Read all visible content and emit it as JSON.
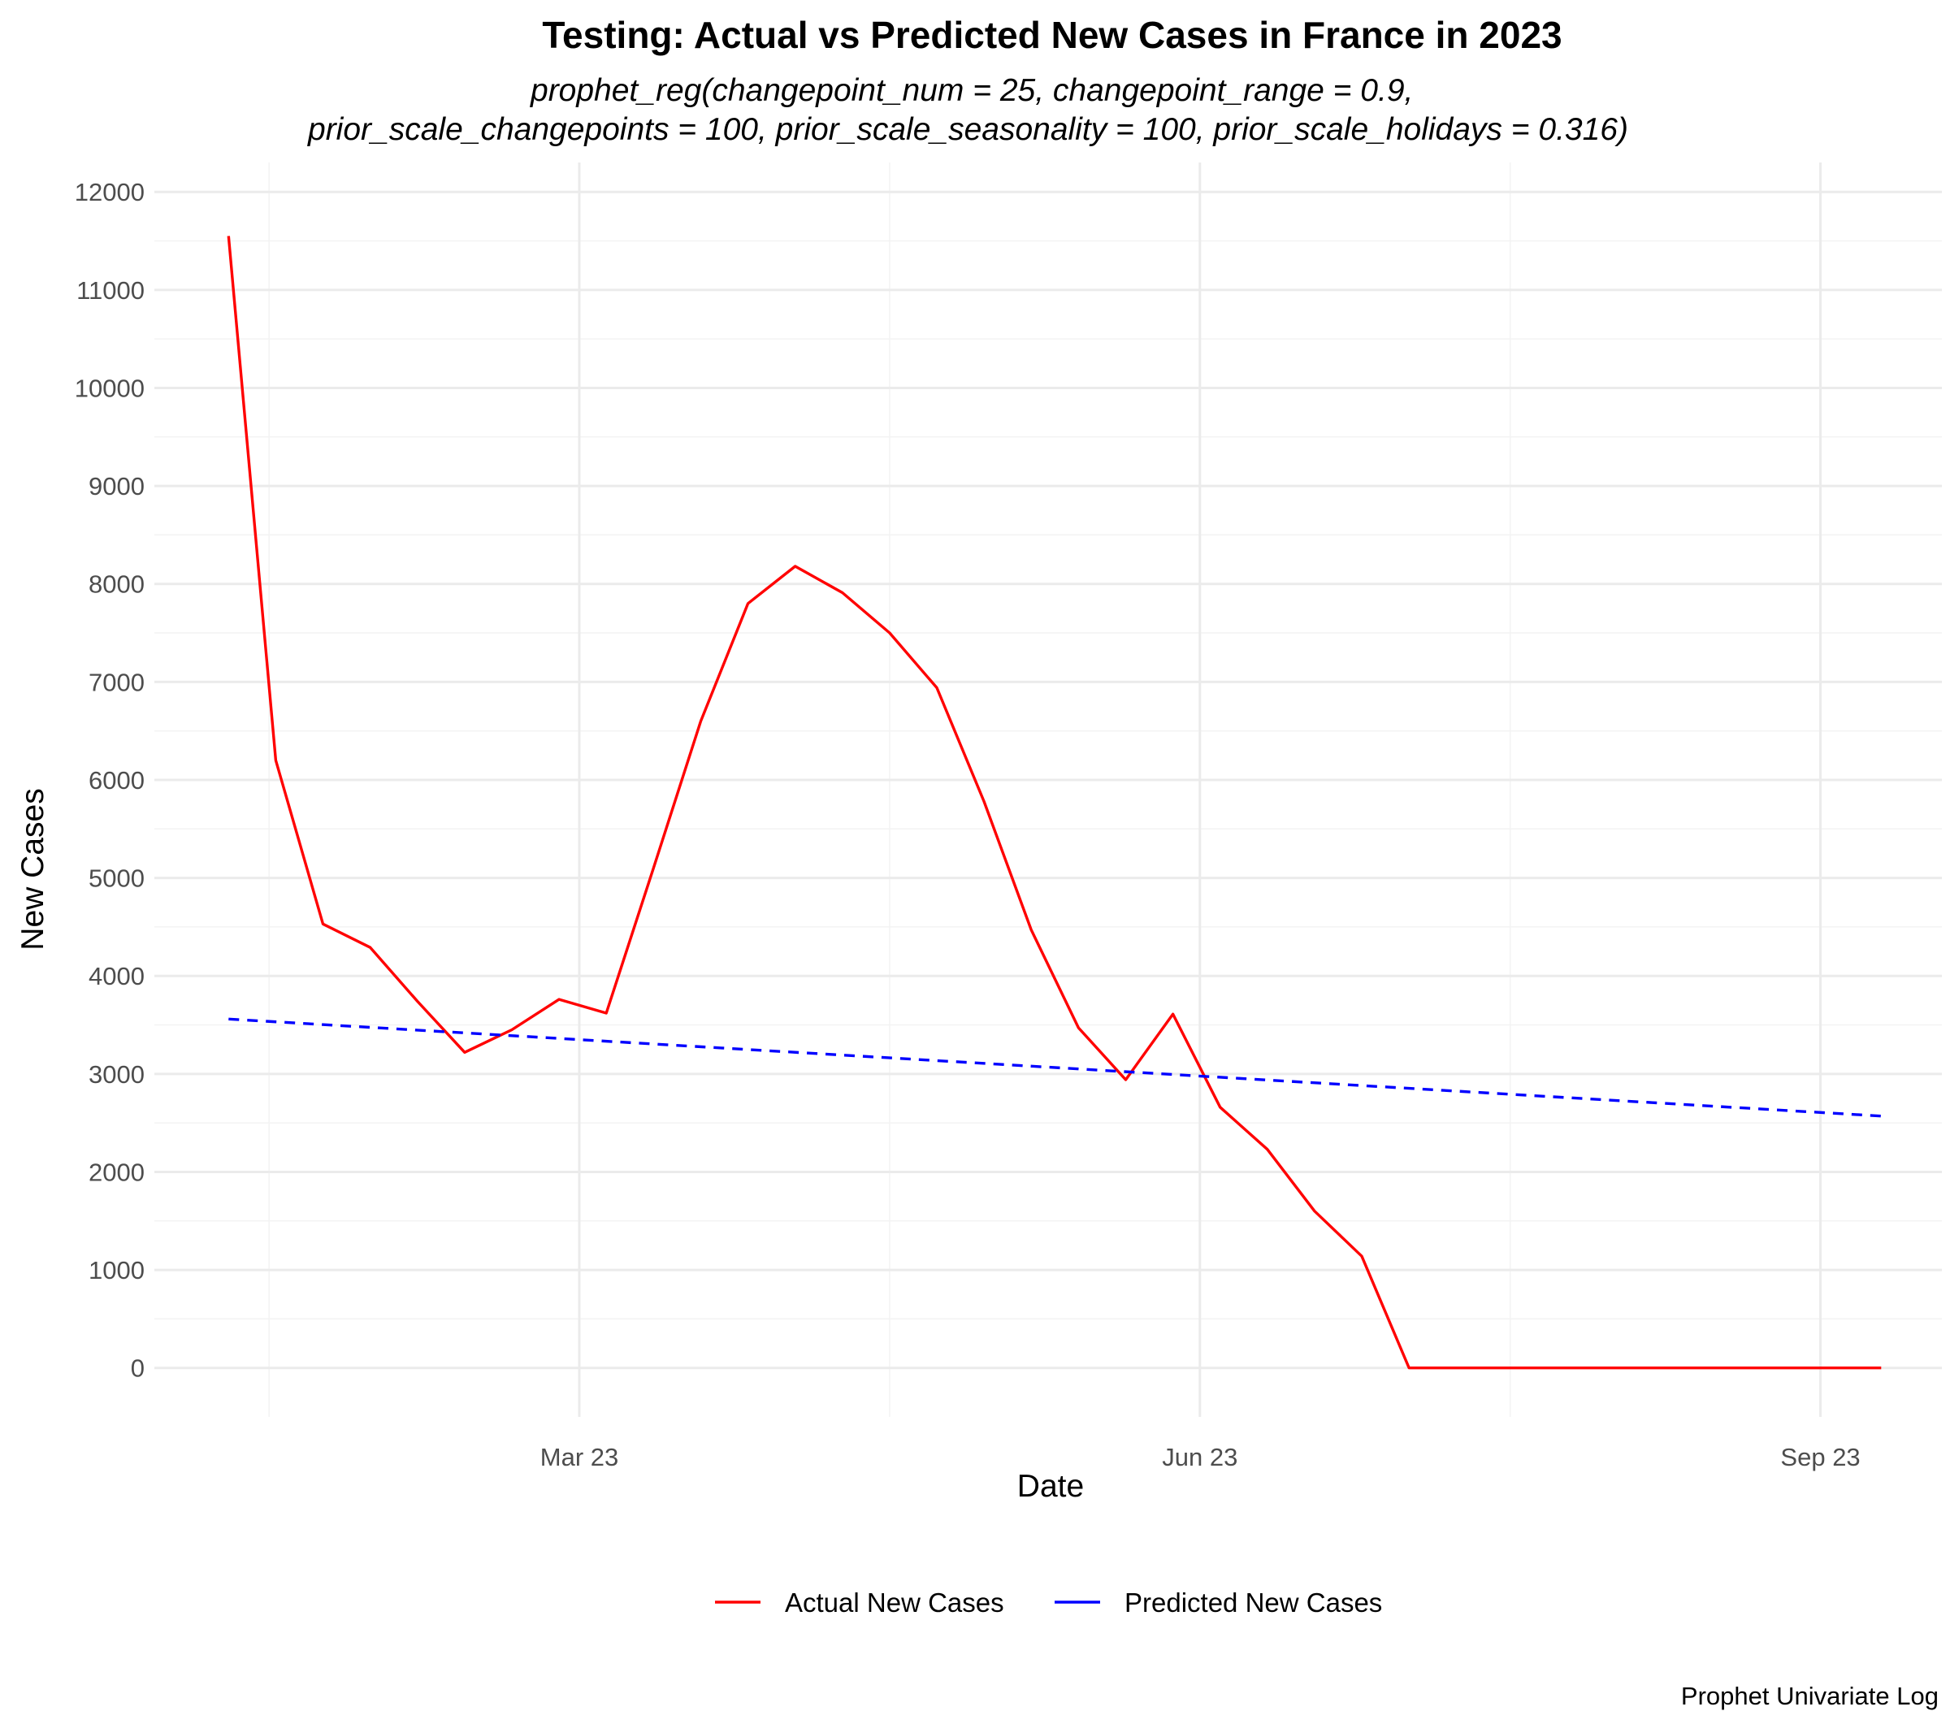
{
  "chart_data": {
    "type": "line",
    "title": "Testing: Actual vs Predicted New Cases in France in 2023",
    "subtitle_lines": [
      "prophet_reg(changepoint_num = 25, changepoint_range = 0.9,",
      "prior_scale_changepoints = 100, prior_scale_seasonality = 100, prior_scale_holidays = 0.316)"
    ],
    "caption": "Prophet Univariate Log",
    "xlabel": "Date",
    "ylabel": "New Cases",
    "x_ticks": [
      "2023-03-01",
      "2023-06-01",
      "2023-09-01"
    ],
    "x_tick_labels": [
      "Mar 23",
      "Jun 23",
      "Sep 23"
    ],
    "xlim": [
      "2022-12-28",
      "2023-09-19"
    ],
    "y_ticks": [
      0,
      1000,
      2000,
      3000,
      4000,
      5000,
      6000,
      7000,
      8000,
      9000,
      10000,
      11000,
      12000
    ],
    "ylim": [
      -500,
      12300
    ],
    "grid": true,
    "legend_position": "bottom",
    "series": [
      {
        "name": "Actual New Cases",
        "color": "#ff0000",
        "line_style": "solid",
        "points": [
          [
            "2023-01-08",
            11550
          ],
          [
            "2023-01-15",
            6200
          ],
          [
            "2023-01-22",
            4530
          ],
          [
            "2023-01-29",
            4290
          ],
          [
            "2023-02-05",
            3740
          ],
          [
            "2023-02-12",
            3220
          ],
          [
            "2023-02-19",
            3450
          ],
          [
            "2023-02-26",
            3760
          ],
          [
            "2023-03-05",
            3620
          ],
          [
            "2023-03-12",
            5100
          ],
          [
            "2023-03-19",
            6600
          ],
          [
            "2023-03-26",
            7800
          ],
          [
            "2023-04-02",
            8180
          ],
          [
            "2023-04-09",
            7910
          ],
          [
            "2023-04-16",
            7500
          ],
          [
            "2023-04-23",
            6940
          ],
          [
            "2023-04-30",
            5780
          ],
          [
            "2023-05-07",
            4470
          ],
          [
            "2023-05-14",
            3470
          ],
          [
            "2023-05-21",
            2940
          ],
          [
            "2023-05-28",
            3610
          ],
          [
            "2023-06-04",
            2660
          ],
          [
            "2023-06-11",
            2230
          ],
          [
            "2023-06-18",
            1600
          ],
          [
            "2023-06-25",
            1140
          ],
          [
            "2023-07-02",
            0
          ],
          [
            "2023-07-09",
            0
          ],
          [
            "2023-07-16",
            0
          ],
          [
            "2023-07-23",
            0
          ],
          [
            "2023-07-30",
            0
          ],
          [
            "2023-08-06",
            0
          ],
          [
            "2023-08-13",
            0
          ],
          [
            "2023-08-20",
            0
          ],
          [
            "2023-08-27",
            0
          ],
          [
            "2023-09-03",
            0
          ],
          [
            "2023-09-10",
            0
          ]
        ]
      },
      {
        "name": "Predicted New Cases",
        "color": "#0000ff",
        "line_style": "dashed",
        "points": [
          [
            "2023-01-08",
            3560
          ],
          [
            "2023-09-10",
            2570
          ]
        ]
      }
    ]
  }
}
